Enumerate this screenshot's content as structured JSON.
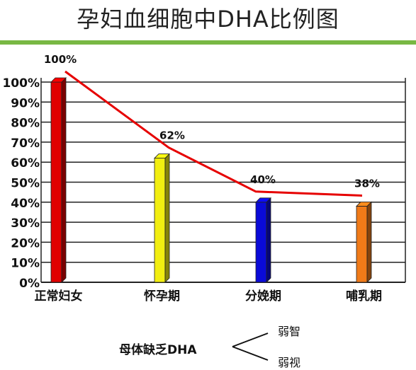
{
  "title": "孕妇血细胞中DHA比例图",
  "colors": {
    "accent_rule": "#78b843",
    "trend_line": "#e60000"
  },
  "chart_data": {
    "type": "bar",
    "categories": [
      "正常妇女",
      "怀孕期",
      "分娩期",
      "哺乳期"
    ],
    "values": [
      100,
      62,
      40,
      38
    ],
    "data_labels": [
      "100%",
      "62%",
      "40%",
      "38%"
    ],
    "bar_colors": [
      "#e00000",
      "#f2ee10",
      "#0a0ad8",
      "#f07a18"
    ],
    "ylim": [
      0,
      100
    ],
    "yticks": [
      0,
      10,
      20,
      30,
      40,
      50,
      60,
      70,
      80,
      90,
      100
    ],
    "ytick_labels": [
      "0%",
      "10%",
      "20%",
      "30%",
      "40%",
      "50%",
      "60%",
      "70%",
      "80%",
      "90%",
      "100%"
    ],
    "grid": true,
    "trend_line": true
  },
  "footer": {
    "text": "母体缺乏DHA",
    "branches": [
      "弱智",
      "弱视"
    ]
  }
}
